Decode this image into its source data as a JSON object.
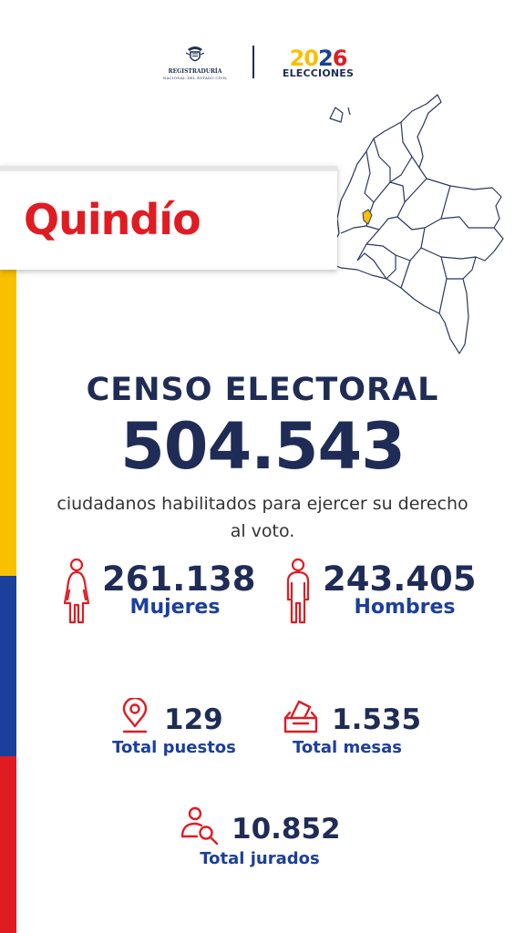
{
  "header": {
    "registraduria_name": "REGISTRADURÍA",
    "registraduria_subtitle": "NACIONAL DEL ESTADO CIVIL",
    "election_year_part1": "20",
    "election_year_part2": "2",
    "election_year_part3": "6",
    "election_word": "ELECCIONES"
  },
  "department": "Quindío",
  "census": {
    "title": "CENSO ELECTORAL",
    "total": "504.543",
    "description": "ciudadanos habilitados para ejercer su derecho al voto."
  },
  "stats": {
    "women": {
      "value": "261.138",
      "label": "Mujeres",
      "icon": "woman-icon"
    },
    "men": {
      "value": "243.405",
      "label": "Hombres",
      "icon": "man-icon"
    },
    "stations": {
      "value": "129",
      "label": "Total puestos",
      "icon": "location-pin-icon"
    },
    "tables": {
      "value": "1.535",
      "label": "Total mesas",
      "icon": "ballot-box-icon"
    },
    "jurors": {
      "value": "10.852",
      "label": "Total jurados",
      "icon": "juror-search-icon"
    }
  },
  "colors": {
    "navy": "#1f2c56",
    "blue": "#1c3f9c",
    "red": "#e01c22",
    "yellow": "#f9c000",
    "highlight": "#f9c000"
  }
}
